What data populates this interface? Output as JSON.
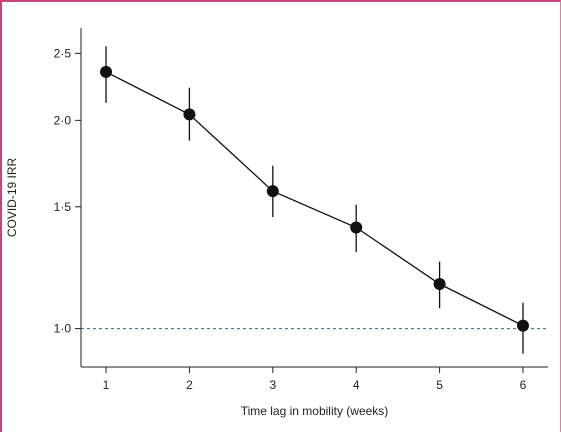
{
  "chart_data": {
    "type": "line",
    "title": "",
    "xlabel": "Time lag in mobility (weeks)",
    "ylabel": "COVID-19 IRR",
    "y_scale": "log",
    "xlim": [
      0.7,
      6.3
    ],
    "ylim": [
      0.88,
      2.72
    ],
    "x_ticks": [
      1,
      2,
      3,
      4,
      5,
      6
    ],
    "x_tick_labels": [
      "1",
      "2",
      "3",
      "4",
      "5",
      "6"
    ],
    "y_ticks": [
      1.0,
      1.5,
      2.0,
      2.5
    ],
    "y_tick_labels": [
      "1·0",
      "1·5",
      "2·0",
      "2·5"
    ],
    "reference_line": {
      "y": 1.0,
      "style": "dashed",
      "color": "#3b5f8a"
    },
    "grid": false,
    "legend": "none",
    "series": [
      {
        "x": [
          1,
          2,
          3,
          4,
          5,
          6
        ],
        "y": [
          2.35,
          2.04,
          1.58,
          1.4,
          1.16,
          1.01
        ],
        "ci_lower": [
          2.12,
          1.87,
          1.45,
          1.29,
          1.07,
          0.92
        ],
        "ci_upper": [
          2.56,
          2.23,
          1.72,
          1.51,
          1.25,
          1.09
        ],
        "color": "#111111"
      }
    ]
  }
}
